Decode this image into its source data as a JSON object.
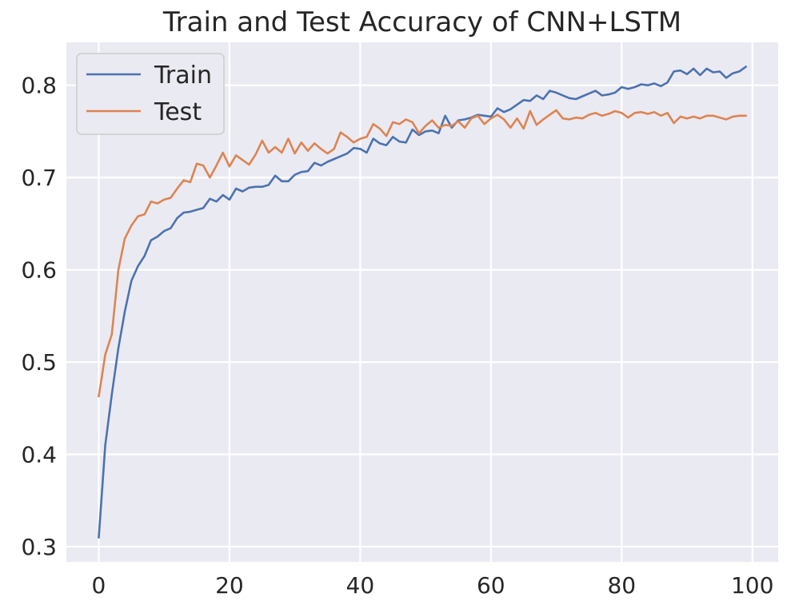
{
  "chart_data": {
    "type": "line",
    "title": "Train and Test Accuracy of CNN+LSTM",
    "xlabel": "",
    "ylabel": "",
    "xlim": [
      -4.95,
      103.95
    ],
    "ylim": [
      0.2835,
      0.8465
    ],
    "xticks": [
      0,
      20,
      40,
      60,
      80,
      100
    ],
    "yticks": [
      0.3,
      0.4,
      0.5,
      0.6,
      0.7,
      0.8
    ],
    "xtick_labels": [
      "0",
      "20",
      "40",
      "60",
      "80",
      "100"
    ],
    "ytick_labels": [
      "0.3",
      "0.4",
      "0.5",
      "0.6",
      "0.7",
      "0.8"
    ],
    "grid": true,
    "legend_position": "upper-left",
    "x": [
      0,
      1,
      2,
      3,
      4,
      5,
      6,
      7,
      8,
      9,
      10,
      11,
      12,
      13,
      14,
      15,
      16,
      17,
      18,
      19,
      20,
      21,
      22,
      23,
      24,
      25,
      26,
      27,
      28,
      29,
      30,
      31,
      32,
      33,
      34,
      35,
      36,
      37,
      38,
      39,
      40,
      41,
      42,
      43,
      44,
      45,
      46,
      47,
      48,
      49,
      50,
      51,
      52,
      53,
      54,
      55,
      56,
      57,
      58,
      59,
      60,
      61,
      62,
      63,
      64,
      65,
      66,
      67,
      68,
      69,
      70,
      71,
      72,
      73,
      74,
      75,
      76,
      77,
      78,
      79,
      80,
      81,
      82,
      83,
      84,
      85,
      86,
      87,
      88,
      89,
      90,
      91,
      92,
      93,
      94,
      95,
      96,
      97,
      98,
      99
    ],
    "series": [
      {
        "name": "Train",
        "color": "#4c72b0",
        "values": [
          0.31,
          0.41,
          0.465,
          0.515,
          0.555,
          0.588,
          0.604,
          0.615,
          0.632,
          0.636,
          0.642,
          0.645,
          0.656,
          0.662,
          0.663,
          0.665,
          0.667,
          0.677,
          0.674,
          0.681,
          0.676,
          0.688,
          0.685,
          0.689,
          0.69,
          0.69,
          0.692,
          0.702,
          0.696,
          0.696,
          0.703,
          0.706,
          0.707,
          0.716,
          0.713,
          0.717,
          0.72,
          0.723,
          0.726,
          0.732,
          0.731,
          0.727,
          0.742,
          0.737,
          0.735,
          0.744,
          0.739,
          0.738,
          0.752,
          0.746,
          0.75,
          0.751,
          0.748,
          0.767,
          0.754,
          0.762,
          0.763,
          0.765,
          0.768,
          0.767,
          0.766,
          0.775,
          0.771,
          0.774,
          0.779,
          0.784,
          0.783,
          0.789,
          0.785,
          0.794,
          0.792,
          0.789,
          0.786,
          0.785,
          0.788,
          0.791,
          0.794,
          0.789,
          0.79,
          0.792,
          0.798,
          0.796,
          0.798,
          0.801,
          0.8,
          0.802,
          0.799,
          0.803,
          0.815,
          0.816,
          0.812,
          0.818,
          0.811,
          0.818,
          0.814,
          0.815,
          0.808,
          0.813,
          0.815,
          0.82
        ]
      },
      {
        "name": "Test",
        "color": "#dd8452",
        "values": [
          0.463,
          0.508,
          0.53,
          0.6,
          0.634,
          0.648,
          0.658,
          0.66,
          0.674,
          0.672,
          0.676,
          0.678,
          0.688,
          0.697,
          0.695,
          0.715,
          0.713,
          0.7,
          0.713,
          0.727,
          0.712,
          0.724,
          0.719,
          0.714,
          0.725,
          0.74,
          0.727,
          0.733,
          0.727,
          0.742,
          0.726,
          0.738,
          0.729,
          0.737,
          0.731,
          0.726,
          0.731,
          0.749,
          0.744,
          0.738,
          0.742,
          0.744,
          0.758,
          0.753,
          0.745,
          0.76,
          0.758,
          0.763,
          0.76,
          0.748,
          0.756,
          0.762,
          0.754,
          0.757,
          0.756,
          0.761,
          0.754,
          0.764,
          0.767,
          0.758,
          0.764,
          0.768,
          0.763,
          0.754,
          0.764,
          0.753,
          0.772,
          0.757,
          0.763,
          0.768,
          0.773,
          0.764,
          0.763,
          0.765,
          0.764,
          0.768,
          0.77,
          0.767,
          0.769,
          0.772,
          0.77,
          0.765,
          0.77,
          0.771,
          0.769,
          0.771,
          0.767,
          0.77,
          0.759,
          0.766,
          0.764,
          0.766,
          0.764,
          0.767,
          0.767,
          0.765,
          0.763,
          0.766,
          0.767,
          0.767
        ]
      }
    ]
  },
  "style": {
    "plot_background": "#eaeaf2",
    "grid_color": "#ffffff",
    "legend_background": "#eaeaf2",
    "legend_border": "#cccccc",
    "text_color": "#262626"
  }
}
